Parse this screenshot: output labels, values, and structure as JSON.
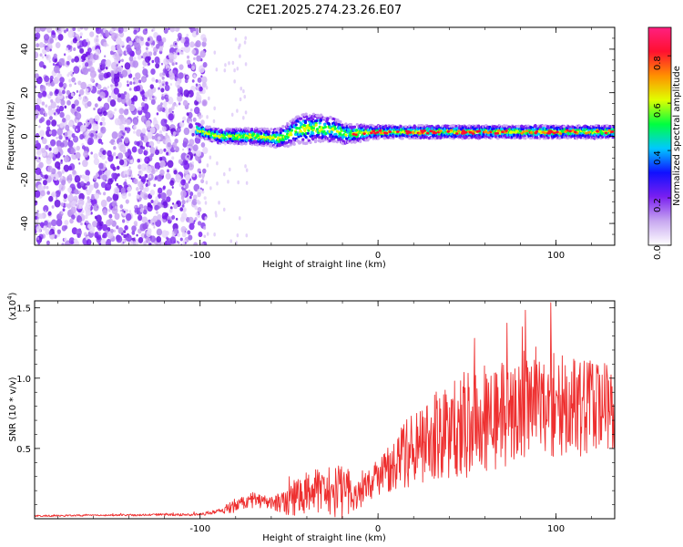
{
  "chart_data": [
    {
      "type": "heatmap",
      "title": "C2E1.2025.274.23.26.E07",
      "xlabel": "Height of straight line (km)",
      "ylabel": "Frequency (Hz)",
      "xlim": [
        -193,
        133
      ],
      "ylim": [
        -50,
        50
      ],
      "x_ticks": [
        -100,
        0,
        100
      ],
      "x_tick_labels": [
        "-100",
        "0",
        "100"
      ],
      "y_ticks": [
        -40,
        -20,
        0,
        20,
        40
      ],
      "y_tick_labels": [
        "-40",
        "-20",
        "0",
        "20",
        "40"
      ],
      "noise_region_x": [
        -193,
        -97
      ],
      "band": {
        "x_start": -102,
        "x_end": 133,
        "center_hz": [
          [
            -102,
            3
          ],
          [
            -90,
            0
          ],
          [
            -70,
            0
          ],
          [
            -55,
            -1
          ],
          [
            -45,
            3
          ],
          [
            -35,
            4
          ],
          [
            -25,
            3
          ],
          [
            -18,
            1
          ],
          [
            0,
            2
          ],
          [
            50,
            2
          ],
          [
            100,
            2
          ],
          [
            133,
            2
          ]
        ],
        "halfwidth_hz": [
          [
            -102,
            3
          ],
          [
            -60,
            4
          ],
          [
            -40,
            7
          ],
          [
            -20,
            5
          ],
          [
            0,
            3
          ],
          [
            133,
            3
          ]
        ]
      },
      "colorbar": {
        "label": "Normalized spectral amplitude",
        "range": [
          0.0,
          0.92
        ],
        "ticks": [
          0.0,
          0.2,
          0.4,
          0.6,
          0.8
        ],
        "tick_labels": [
          "0.0",
          "0.2",
          "0.4",
          "0.6",
          "0.8"
        ],
        "colors": [
          "#ffffff",
          "#c8a8f0",
          "#7a1ff0",
          "#1010ff",
          "#00c8ff",
          "#00ff40",
          "#e0ff00",
          "#ff9000",
          "#ff1030",
          "#ff2080"
        ]
      }
    },
    {
      "type": "line",
      "xlabel": "Height of straight line (km)",
      "ylabel": "SNR (10 * v/v)",
      "y_scale_label": "(x10",
      "y_scale_exp": "4",
      "y_scale_close": ")",
      "xlim": [
        -193,
        133
      ],
      "ylim": [
        0,
        15500
      ],
      "x_ticks": [
        -100,
        0,
        100
      ],
      "x_tick_labels": [
        "-100",
        "0",
        "100"
      ],
      "y_ticks": [
        5000,
        10000,
        15000
      ],
      "y_tick_labels": [
        "0.5",
        "1.0",
        "1.5"
      ],
      "series": [
        {
          "name": "SNR",
          "color": "#ee3030",
          "envelope_x": [
            -193,
            -150,
            -100,
            -90,
            -80,
            -70,
            -60,
            -50,
            -40,
            -30,
            -20,
            -10,
            0,
            10,
            20,
            30,
            40,
            50,
            60,
            70,
            80,
            90,
            100,
            110,
            120,
            133
          ],
          "envelope_mean": [
            200,
            250,
            300,
            500,
            900,
            1300,
            1100,
            1300,
            1800,
            1900,
            1900,
            1800,
            2800,
            4000,
            5000,
            5800,
            6300,
            6800,
            7000,
            7400,
            7600,
            7800,
            8000,
            7800,
            8000,
            8000
          ],
          "envelope_spread": [
            100,
            100,
            150,
            300,
            800,
            900,
            800,
            1800,
            2500,
            3000,
            3500,
            1800,
            2500,
            3500,
            4500,
            5000,
            6000,
            6500,
            6500,
            6500,
            6000,
            6000,
            6500,
            6000,
            5500,
            5000
          ]
        }
      ]
    }
  ]
}
